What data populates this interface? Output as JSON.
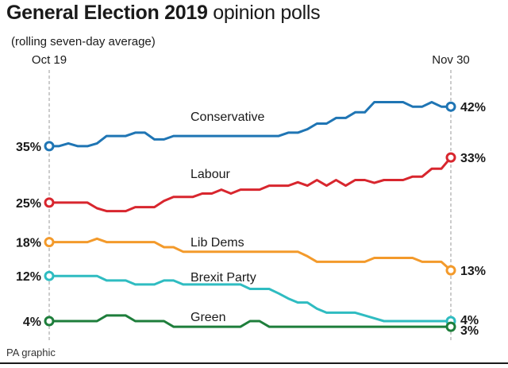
{
  "header": {
    "title_bold": "General Election 2019",
    "title_rest": "opinion polls",
    "subtitle": "(rolling seven-day average)"
  },
  "footer": {
    "credit": "PA graphic"
  },
  "chart_data": {
    "type": "line",
    "title": "General Election 2019 opinion polls",
    "subtitle": "(rolling seven-day average)",
    "x_start_label": "Oct 19",
    "x_end_label": "Nov 30",
    "x_range": [
      0,
      42
    ],
    "ylabel": "",
    "xlabel": "",
    "grid": false,
    "series": [
      {
        "name": "Conservative",
        "color": "#1f75b4",
        "start_label": "35%",
        "end_label": "42%",
        "points": [
          [
            0,
            35
          ],
          [
            1,
            35
          ],
          [
            2,
            35.5
          ],
          [
            3,
            35
          ],
          [
            4,
            35
          ],
          [
            5,
            35.5
          ],
          [
            6,
            36.8
          ],
          [
            7,
            36.8
          ],
          [
            8,
            36.8
          ],
          [
            9,
            37.4
          ],
          [
            10,
            37.4
          ],
          [
            11,
            36.2
          ],
          [
            12,
            36.2
          ],
          [
            13,
            36.8
          ],
          [
            14,
            36.8
          ],
          [
            15,
            36.8
          ],
          [
            16,
            36.8
          ],
          [
            17,
            36.8
          ],
          [
            18,
            36.8
          ],
          [
            19,
            36.8
          ],
          [
            20,
            36.8
          ],
          [
            21,
            36.8
          ],
          [
            22,
            36.8
          ],
          [
            23,
            36.8
          ],
          [
            24,
            36.8
          ],
          [
            25,
            37.4
          ],
          [
            26,
            37.4
          ],
          [
            27,
            38
          ],
          [
            28,
            39
          ],
          [
            29,
            39
          ],
          [
            30,
            40
          ],
          [
            31,
            40
          ],
          [
            32,
            41
          ],
          [
            33,
            41
          ],
          [
            34,
            42.8
          ],
          [
            35,
            42.8
          ],
          [
            36,
            42.8
          ],
          [
            37,
            42.8
          ],
          [
            38,
            42
          ],
          [
            39,
            42
          ],
          [
            40,
            42.8
          ],
          [
            41,
            42
          ],
          [
            42,
            42
          ]
        ]
      },
      {
        "name": "Labour",
        "color": "#d8262e",
        "start_label": "25%",
        "end_label": "33%",
        "points": [
          [
            0,
            25
          ],
          [
            1,
            25
          ],
          [
            2,
            25
          ],
          [
            3,
            25
          ],
          [
            4,
            25
          ],
          [
            5,
            24
          ],
          [
            6,
            23.5
          ],
          [
            7,
            23.5
          ],
          [
            8,
            23.5
          ],
          [
            9,
            24.2
          ],
          [
            10,
            24.2
          ],
          [
            11,
            24.2
          ],
          [
            12,
            25.3
          ],
          [
            13,
            26
          ],
          [
            14,
            26
          ],
          [
            15,
            26
          ],
          [
            16,
            26.6
          ],
          [
            17,
            26.6
          ],
          [
            18,
            27.3
          ],
          [
            19,
            26.6
          ],
          [
            20,
            27.3
          ],
          [
            21,
            27.3
          ],
          [
            22,
            27.3
          ],
          [
            23,
            28
          ],
          [
            24,
            28
          ],
          [
            25,
            28
          ],
          [
            26,
            28.6
          ],
          [
            27,
            28
          ],
          [
            28,
            29
          ],
          [
            29,
            28
          ],
          [
            30,
            29
          ],
          [
            31,
            28
          ],
          [
            32,
            29
          ],
          [
            33,
            29
          ],
          [
            34,
            28.5
          ],
          [
            35,
            29
          ],
          [
            36,
            29
          ],
          [
            37,
            29
          ],
          [
            38,
            29.6
          ],
          [
            39,
            29.6
          ],
          [
            40,
            31
          ],
          [
            41,
            31
          ],
          [
            42,
            33
          ]
        ]
      },
      {
        "name": "Lib Dems",
        "color": "#f39a2b",
        "start_label": "18%",
        "end_label": "13%",
        "points": [
          [
            0,
            18
          ],
          [
            1,
            18
          ],
          [
            2,
            18
          ],
          [
            3,
            18
          ],
          [
            4,
            18
          ],
          [
            5,
            18.6
          ],
          [
            6,
            18
          ],
          [
            7,
            18
          ],
          [
            8,
            18
          ],
          [
            9,
            18
          ],
          [
            10,
            18
          ],
          [
            11,
            18
          ],
          [
            12,
            17.1
          ],
          [
            13,
            17.1
          ],
          [
            14,
            16.3
          ],
          [
            15,
            16.3
          ],
          [
            16,
            16.3
          ],
          [
            17,
            16.3
          ],
          [
            18,
            16.3
          ],
          [
            19,
            16.3
          ],
          [
            20,
            16.3
          ],
          [
            21,
            16.3
          ],
          [
            22,
            16.3
          ],
          [
            23,
            16.3
          ],
          [
            24,
            16.3
          ],
          [
            25,
            16.3
          ],
          [
            26,
            16.3
          ],
          [
            27,
            15.5
          ],
          [
            28,
            14.5
          ],
          [
            29,
            14.5
          ],
          [
            30,
            14.5
          ],
          [
            31,
            14.5
          ],
          [
            32,
            14.5
          ],
          [
            33,
            14.5
          ],
          [
            34,
            15.2
          ],
          [
            35,
            15.2
          ],
          [
            36,
            15.2
          ],
          [
            37,
            15.2
          ],
          [
            38,
            15.2
          ],
          [
            39,
            14.5
          ],
          [
            40,
            14.5
          ],
          [
            41,
            14.5
          ],
          [
            42,
            13
          ]
        ]
      },
      {
        "name": "Brexit Party",
        "color": "#2fbcc1",
        "start_label": "12%",
        "end_label": "4%",
        "points": [
          [
            0,
            12
          ],
          [
            1,
            12
          ],
          [
            2,
            12
          ],
          [
            3,
            12
          ],
          [
            4,
            12
          ],
          [
            5,
            12
          ],
          [
            6,
            11.2
          ],
          [
            7,
            11.2
          ],
          [
            8,
            11.2
          ],
          [
            9,
            10.5
          ],
          [
            10,
            10.5
          ],
          [
            11,
            10.5
          ],
          [
            12,
            11.2
          ],
          [
            13,
            11.2
          ],
          [
            14,
            10.5
          ],
          [
            15,
            10.5
          ],
          [
            16,
            10.5
          ],
          [
            17,
            10.5
          ],
          [
            18,
            10.5
          ],
          [
            19,
            10.5
          ],
          [
            20,
            10.5
          ],
          [
            21,
            9.7
          ],
          [
            22,
            9.7
          ],
          [
            23,
            9.7
          ],
          [
            24,
            8.9
          ],
          [
            25,
            8
          ],
          [
            26,
            7.3
          ],
          [
            27,
            7.3
          ],
          [
            28,
            6.2
          ],
          [
            29,
            5.5
          ],
          [
            30,
            5.5
          ],
          [
            31,
            5.5
          ],
          [
            32,
            5.5
          ],
          [
            33,
            5
          ],
          [
            34,
            4.5
          ],
          [
            35,
            4
          ],
          [
            36,
            4
          ],
          [
            37,
            4
          ],
          [
            38,
            4
          ],
          [
            39,
            4
          ],
          [
            40,
            4
          ],
          [
            41,
            4
          ],
          [
            42,
            4
          ]
        ]
      },
      {
        "name": "Green",
        "color": "#1e7e3b",
        "start_label": "4%",
        "end_label": "3%",
        "points": [
          [
            0,
            4
          ],
          [
            1,
            4
          ],
          [
            2,
            4
          ],
          [
            3,
            4
          ],
          [
            4,
            4
          ],
          [
            5,
            4
          ],
          [
            6,
            5
          ],
          [
            7,
            5
          ],
          [
            8,
            5
          ],
          [
            9,
            4
          ],
          [
            10,
            4
          ],
          [
            11,
            4
          ],
          [
            12,
            4
          ],
          [
            13,
            3
          ],
          [
            14,
            3
          ],
          [
            15,
            3
          ],
          [
            16,
            3
          ],
          [
            17,
            3
          ],
          [
            18,
            3
          ],
          [
            19,
            3
          ],
          [
            20,
            3
          ],
          [
            21,
            4
          ],
          [
            22,
            4
          ],
          [
            23,
            3
          ],
          [
            24,
            3
          ],
          [
            25,
            3
          ],
          [
            26,
            3
          ],
          [
            27,
            3
          ],
          [
            28,
            3
          ],
          [
            29,
            3
          ],
          [
            30,
            3
          ],
          [
            31,
            3
          ],
          [
            32,
            3
          ],
          [
            33,
            3
          ],
          [
            34,
            3
          ],
          [
            35,
            3
          ],
          [
            36,
            3
          ],
          [
            37,
            3
          ],
          [
            38,
            3
          ],
          [
            39,
            3
          ],
          [
            40,
            3
          ],
          [
            41,
            3
          ],
          [
            42,
            3
          ]
        ]
      }
    ]
  }
}
